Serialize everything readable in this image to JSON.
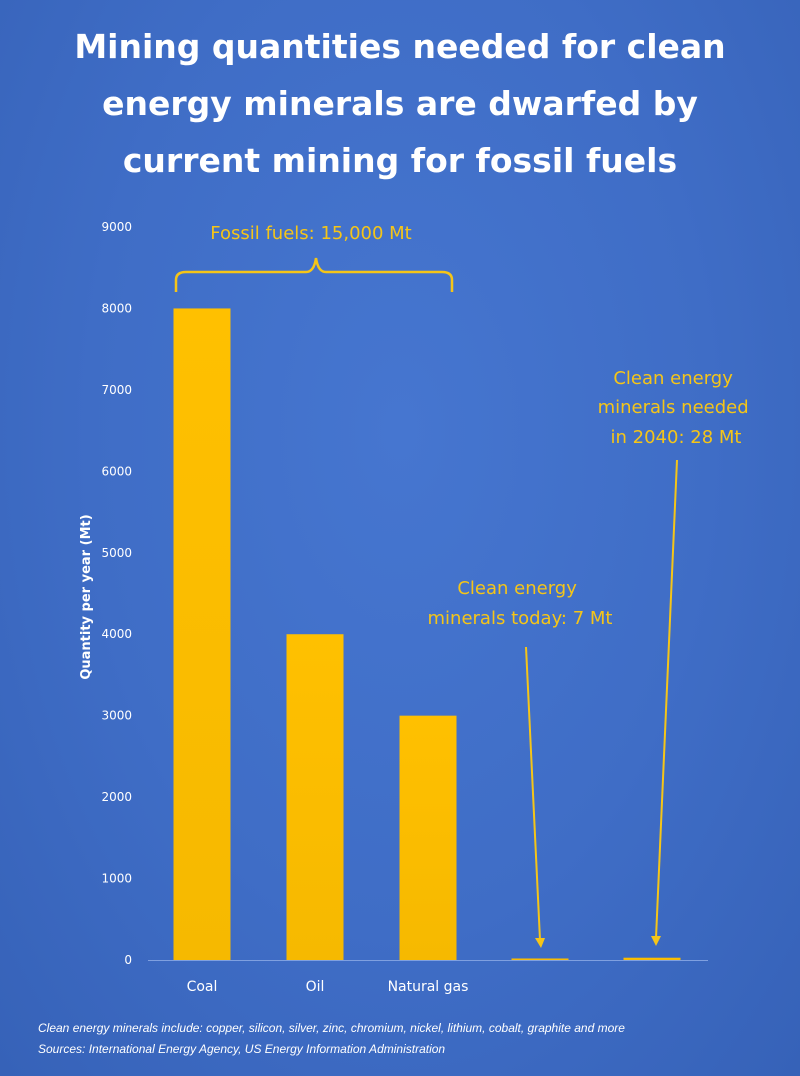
{
  "chart_data": {
    "type": "bar",
    "title": "Mining quantities needed for clean energy minerals are dwarfed by current mining for fossil fuels",
    "title_lines": [
      "Mining quantities needed for clean",
      "energy minerals are dwarfed by",
      "current mining for fossil fuels"
    ],
    "categories": [
      "Coal",
      "Oil",
      "Natural gas",
      "",
      ""
    ],
    "values": [
      8000,
      4000,
      3000,
      7,
      28
    ],
    "ylabel": "Quantity per year (Mt)",
    "xlabel": "",
    "ylim": [
      0,
      9000
    ],
    "yticks": [
      "0",
      "1000",
      "2000",
      "3000",
      "4000",
      "5000",
      "6000",
      "7000",
      "8000",
      "9000"
    ],
    "grid": false,
    "bar_color": "#ffc000",
    "annotations": {
      "fossil": "Fossil fuels: 15,000 Mt",
      "today_lines": [
        "Clean energy",
        "minerals today: 7 Mt"
      ],
      "future_lines": [
        "Clean energy",
        "minerals needed",
        "in 2040: 28 Mt"
      ]
    }
  },
  "footnotes": {
    "minerals": "Clean energy minerals include: copper, silicon, silver, zinc, chromium, nickel, lithium, cobalt, graphite and more",
    "sources": "Sources: International Energy Agency, US Energy Information Administration"
  },
  "colors": {
    "background": "#3f6dc6",
    "title": "#ffffff",
    "annotation": "#f5c518"
  }
}
